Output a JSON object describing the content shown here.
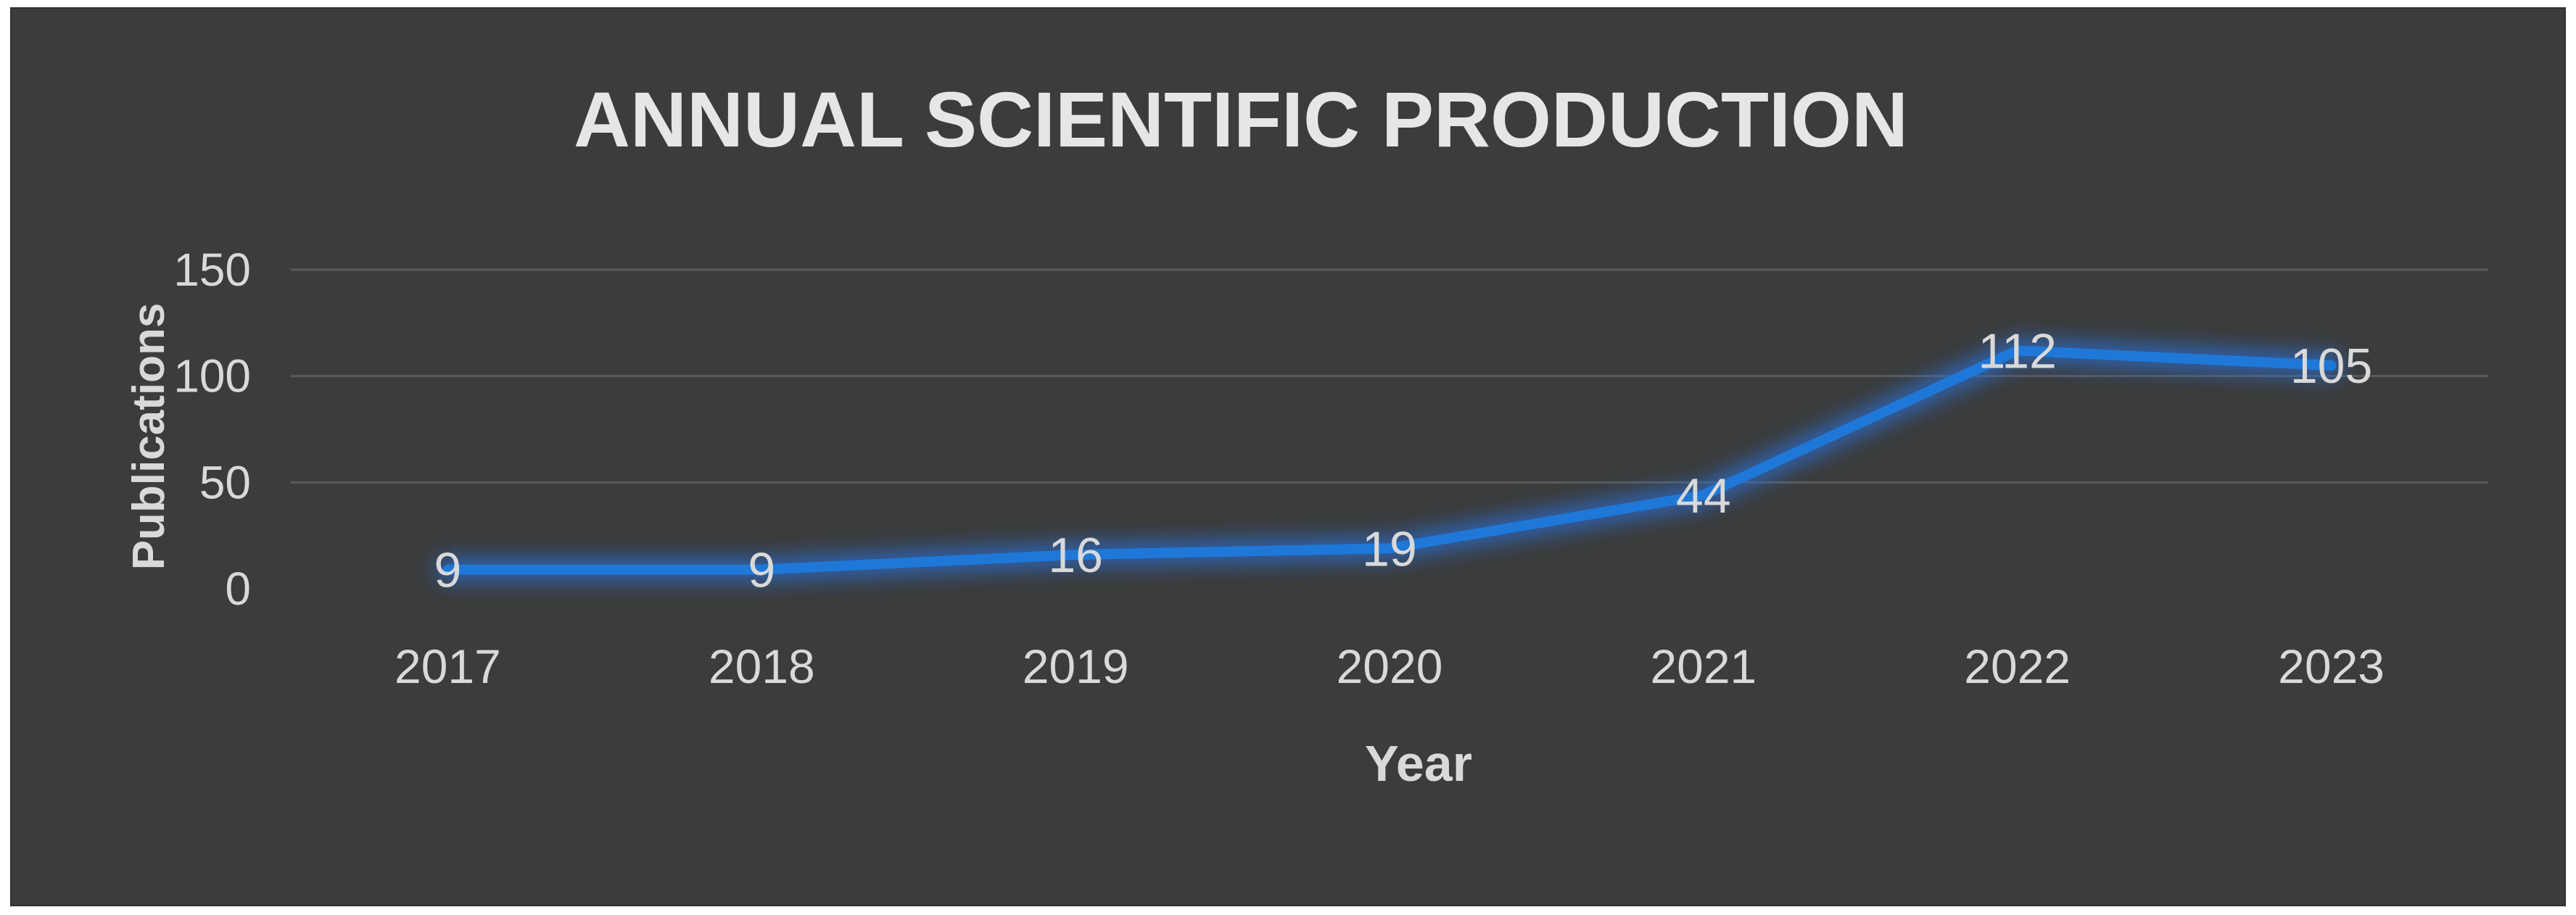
{
  "chart_data": {
    "type": "line",
    "title": "ANNUAL SCIENTIFIC PRODUCTION",
    "xlabel": "Year",
    "ylabel": "Publications",
    "categories": [
      "2017",
      "2018",
      "2019",
      "2020",
      "2021",
      "2022",
      "2023"
    ],
    "series": [
      {
        "name": "Publications",
        "values": [
          9,
          9,
          16,
          19,
          44,
          112,
          105
        ]
      }
    ],
    "data_labels": [
      "9",
      "9",
      "16",
      "19",
      "44",
      "112",
      "105"
    ],
    "ylim": [
      0,
      150
    ],
    "yticks": [
      "0",
      "50",
      "100",
      "150"
    ],
    "grid": true,
    "legend": "none"
  },
  "colors": {
    "background": "#3b3c3c",
    "line": "#1f78d8",
    "glow": "#2a6fd6",
    "grid": "#5a5b5b",
    "text": "#d9d9d9",
    "title": "#e6e6e6"
  }
}
